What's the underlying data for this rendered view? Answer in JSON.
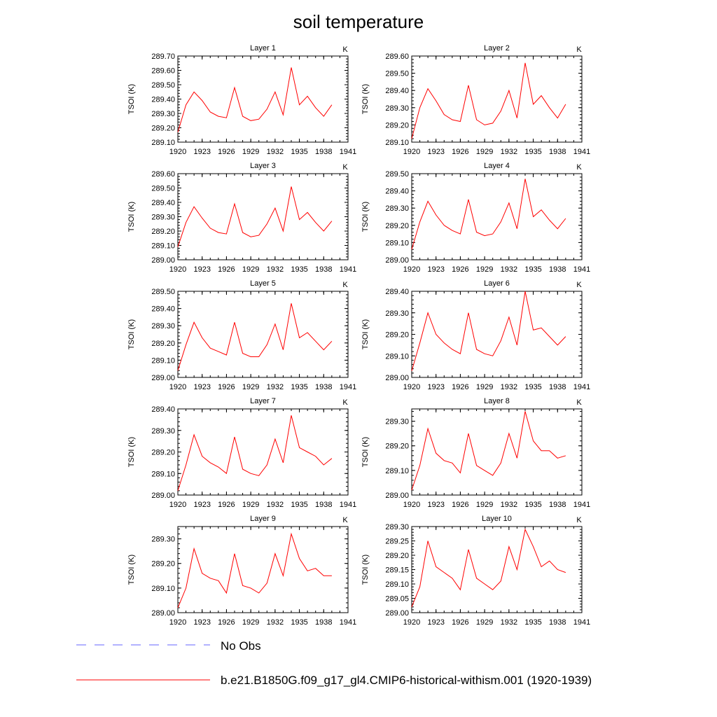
{
  "title": "soil temperature",
  "legend": [
    {
      "label": "No Obs",
      "color": "#6666ff",
      "style": "dashed"
    },
    {
      "label": "b.e21.B1850G.f09_g17_gl4.CMIP6-historical-withism.001 (1920-1939)",
      "color": "#ff0000",
      "style": "solid"
    }
  ],
  "chart_data": [
    {
      "type": "line",
      "title": "Layer 1",
      "unit": "K",
      "ylabel": "TSOI  (K)",
      "xlim": [
        1920,
        1941
      ],
      "ylim": [
        289.1,
        289.7
      ],
      "yticks": [
        "289.10",
        "289.20",
        "289.30",
        "289.40",
        "289.50",
        "289.60",
        "289.70"
      ],
      "xticks": [
        "1920",
        "1923",
        "1926",
        "1929",
        "1932",
        "1935",
        "1938",
        "1941"
      ],
      "x": [
        1920,
        1921,
        1922,
        1923,
        1924,
        1925,
        1926,
        1927,
        1928,
        1929,
        1930,
        1931,
        1932,
        1933,
        1934,
        1935,
        1936,
        1937,
        1938,
        1939
      ],
      "series": [
        {
          "values": [
            289.17,
            289.36,
            289.45,
            289.39,
            289.31,
            289.28,
            289.27,
            289.48,
            289.28,
            289.25,
            289.26,
            289.33,
            289.45,
            289.29,
            289.62,
            289.36,
            289.42,
            289.34,
            289.28,
            289.36
          ]
        }
      ]
    },
    {
      "type": "line",
      "title": "Layer 2",
      "unit": "K",
      "ylabel": "TSOI  (K)",
      "xlim": [
        1920,
        1941
      ],
      "ylim": [
        289.1,
        289.6
      ],
      "yticks": [
        "289.10",
        "289.20",
        "289.30",
        "289.40",
        "289.50",
        "289.60"
      ],
      "xticks": [
        "1920",
        "1923",
        "1926",
        "1929",
        "1932",
        "1935",
        "1938",
        "1941"
      ],
      "x": [
        1920,
        1921,
        1922,
        1923,
        1924,
        1925,
        1926,
        1927,
        1928,
        1929,
        1930,
        1931,
        1932,
        1933,
        1934,
        1935,
        1936,
        1937,
        1938,
        1939
      ],
      "series": [
        {
          "values": [
            289.12,
            289.3,
            289.41,
            289.34,
            289.26,
            289.23,
            289.22,
            289.43,
            289.23,
            289.2,
            289.21,
            289.28,
            289.4,
            289.24,
            289.56,
            289.32,
            289.37,
            289.3,
            289.24,
            289.32
          ]
        }
      ]
    },
    {
      "type": "line",
      "title": "Layer 3",
      "unit": "K",
      "ylabel": "TSOI  (K)",
      "xlim": [
        1920,
        1941
      ],
      "ylim": [
        289.0,
        289.6
      ],
      "yticks": [
        "289.00",
        "289.10",
        "289.20",
        "289.30",
        "289.40",
        "289.50",
        "289.60"
      ],
      "xticks": [
        "1920",
        "1923",
        "1926",
        "1929",
        "1932",
        "1935",
        "1938",
        "1941"
      ],
      "x": [
        1920,
        1921,
        1922,
        1923,
        1924,
        1925,
        1926,
        1927,
        1928,
        1929,
        1930,
        1931,
        1932,
        1933,
        1934,
        1935,
        1936,
        1937,
        1938,
        1939
      ],
      "series": [
        {
          "values": [
            289.09,
            289.26,
            289.37,
            289.29,
            289.22,
            289.19,
            289.18,
            289.39,
            289.19,
            289.16,
            289.17,
            289.25,
            289.36,
            289.2,
            289.51,
            289.28,
            289.33,
            289.26,
            289.2,
            289.27
          ]
        }
      ]
    },
    {
      "type": "line",
      "title": "Layer 4",
      "unit": "K",
      "ylabel": "TSOI  (K)",
      "xlim": [
        1920,
        1941
      ],
      "ylim": [
        289.0,
        289.5
      ],
      "yticks": [
        "289.00",
        "289.10",
        "289.20",
        "289.30",
        "289.40",
        "289.50"
      ],
      "xticks": [
        "1920",
        "1923",
        "1926",
        "1929",
        "1932",
        "1935",
        "1938",
        "1941"
      ],
      "x": [
        1920,
        1921,
        1922,
        1923,
        1924,
        1925,
        1926,
        1927,
        1928,
        1929,
        1930,
        1931,
        1932,
        1933,
        1934,
        1935,
        1936,
        1937,
        1938,
        1939
      ],
      "series": [
        {
          "values": [
            289.06,
            289.22,
            289.34,
            289.26,
            289.2,
            289.17,
            289.15,
            289.35,
            289.16,
            289.14,
            289.15,
            289.22,
            289.33,
            289.18,
            289.47,
            289.25,
            289.29,
            289.23,
            289.18,
            289.24
          ]
        }
      ]
    },
    {
      "type": "line",
      "title": "Layer 5",
      "unit": "K",
      "ylabel": "TSOI  (K)",
      "xlim": [
        1920,
        1941
      ],
      "ylim": [
        289.0,
        289.5
      ],
      "yticks": [
        "289.00",
        "289.10",
        "289.20",
        "289.30",
        "289.40",
        "289.50"
      ],
      "xticks": [
        "1920",
        "1923",
        "1926",
        "1929",
        "1932",
        "1935",
        "1938",
        "1941"
      ],
      "x": [
        1920,
        1921,
        1922,
        1923,
        1924,
        1925,
        1926,
        1927,
        1928,
        1929,
        1930,
        1931,
        1932,
        1933,
        1934,
        1935,
        1936,
        1937,
        1938,
        1939
      ],
      "series": [
        {
          "values": [
            289.04,
            289.19,
            289.32,
            289.23,
            289.17,
            289.15,
            289.13,
            289.32,
            289.14,
            289.12,
            289.12,
            289.19,
            289.31,
            289.16,
            289.43,
            289.23,
            289.26,
            289.21,
            289.16,
            289.21
          ]
        }
      ]
    },
    {
      "type": "line",
      "title": "Layer 6",
      "unit": "K",
      "ylabel": "TSOI  (K)",
      "xlim": [
        1920,
        1941
      ],
      "ylim": [
        289.0,
        289.4
      ],
      "yticks": [
        "289.00",
        "289.10",
        "289.20",
        "289.30",
        "289.40"
      ],
      "xticks": [
        "1920",
        "1923",
        "1926",
        "1929",
        "1932",
        "1935",
        "1938",
        "1941"
      ],
      "x": [
        1920,
        1921,
        1922,
        1923,
        1924,
        1925,
        1926,
        1927,
        1928,
        1929,
        1930,
        1931,
        1932,
        1933,
        1934,
        1935,
        1936,
        1937,
        1938,
        1939
      ],
      "series": [
        {
          "values": [
            289.03,
            289.16,
            289.3,
            289.2,
            289.16,
            289.13,
            289.11,
            289.3,
            289.13,
            289.11,
            289.1,
            289.17,
            289.28,
            289.15,
            289.4,
            289.22,
            289.23,
            289.19,
            289.15,
            289.19
          ]
        }
      ]
    },
    {
      "type": "line",
      "title": "Layer 7",
      "unit": "K",
      "ylabel": "TSOI  (K)",
      "xlim": [
        1920,
        1941
      ],
      "ylim": [
        289.0,
        289.4
      ],
      "yticks": [
        "289.00",
        "289.10",
        "289.20",
        "289.30",
        "289.40"
      ],
      "xticks": [
        "1920",
        "1923",
        "1926",
        "1929",
        "1932",
        "1935",
        "1938",
        "1941"
      ],
      "x": [
        1920,
        1921,
        1922,
        1923,
        1924,
        1925,
        1926,
        1927,
        1928,
        1929,
        1930,
        1931,
        1932,
        1933,
        1934,
        1935,
        1936,
        1937,
        1938,
        1939
      ],
      "series": [
        {
          "values": [
            289.02,
            289.14,
            289.28,
            289.18,
            289.15,
            289.13,
            289.1,
            289.27,
            289.12,
            289.1,
            289.09,
            289.14,
            289.26,
            289.15,
            289.37,
            289.22,
            289.2,
            289.18,
            289.14,
            289.17
          ]
        }
      ]
    },
    {
      "type": "line",
      "title": "Layer 8",
      "unit": "K",
      "ylabel": "TSOI  (K)",
      "xlim": [
        1920,
        1941
      ],
      "ylim": [
        289.0,
        289.35
      ],
      "yticks": [
        "289.00",
        "289.10",
        "289.20",
        "289.30"
      ],
      "xticks": [
        "1920",
        "1923",
        "1926",
        "1929",
        "1932",
        "1935",
        "1938",
        "1941"
      ],
      "x": [
        1920,
        1921,
        1922,
        1923,
        1924,
        1925,
        1926,
        1927,
        1928,
        1929,
        1930,
        1931,
        1932,
        1933,
        1934,
        1935,
        1936,
        1937,
        1938,
        1939
      ],
      "series": [
        {
          "values": [
            289.02,
            289.12,
            289.27,
            289.17,
            289.14,
            289.13,
            289.09,
            289.25,
            289.12,
            289.1,
            289.08,
            289.13,
            289.25,
            289.15,
            289.34,
            289.22,
            289.18,
            289.18,
            289.15,
            289.16
          ]
        }
      ]
    },
    {
      "type": "line",
      "title": "Layer 9",
      "unit": "K",
      "ylabel": "TSOI  (K)",
      "xlim": [
        1920,
        1941
      ],
      "ylim": [
        289.0,
        289.35
      ],
      "yticks": [
        "289.00",
        "289.10",
        "289.20",
        "289.30"
      ],
      "xticks": [
        "1920",
        "1923",
        "1926",
        "1929",
        "1932",
        "1935",
        "1938",
        "1941"
      ],
      "x": [
        1920,
        1921,
        1922,
        1923,
        1924,
        1925,
        1926,
        1927,
        1928,
        1929,
        1930,
        1931,
        1932,
        1933,
        1934,
        1935,
        1936,
        1937,
        1938,
        1939
      ],
      "series": [
        {
          "values": [
            289.02,
            289.1,
            289.26,
            289.16,
            289.14,
            289.13,
            289.08,
            289.24,
            289.11,
            289.1,
            289.08,
            289.12,
            289.24,
            289.15,
            289.32,
            289.22,
            289.17,
            289.18,
            289.15,
            289.15
          ]
        }
      ]
    },
    {
      "type": "line",
      "title": "Layer 10",
      "unit": "K",
      "ylabel": "TSOI  (K)",
      "xlim": [
        1920,
        1941
      ],
      "ylim": [
        289.0,
        289.3
      ],
      "yticks": [
        "289.00",
        "289.05",
        "289.10",
        "289.15",
        "289.20",
        "289.25",
        "289.30"
      ],
      "xticks": [
        "1920",
        "1923",
        "1926",
        "1929",
        "1932",
        "1935",
        "1938",
        "1941"
      ],
      "x": [
        1920,
        1921,
        1922,
        1923,
        1924,
        1925,
        1926,
        1927,
        1928,
        1929,
        1930,
        1931,
        1932,
        1933,
        1934,
        1935,
        1936,
        1937,
        1938,
        1939
      ],
      "series": [
        {
          "values": [
            289.02,
            289.09,
            289.25,
            289.16,
            289.14,
            289.12,
            289.08,
            289.22,
            289.12,
            289.1,
            289.08,
            289.11,
            289.23,
            289.15,
            289.29,
            289.23,
            289.16,
            289.18,
            289.15,
            289.14
          ]
        }
      ]
    }
  ]
}
